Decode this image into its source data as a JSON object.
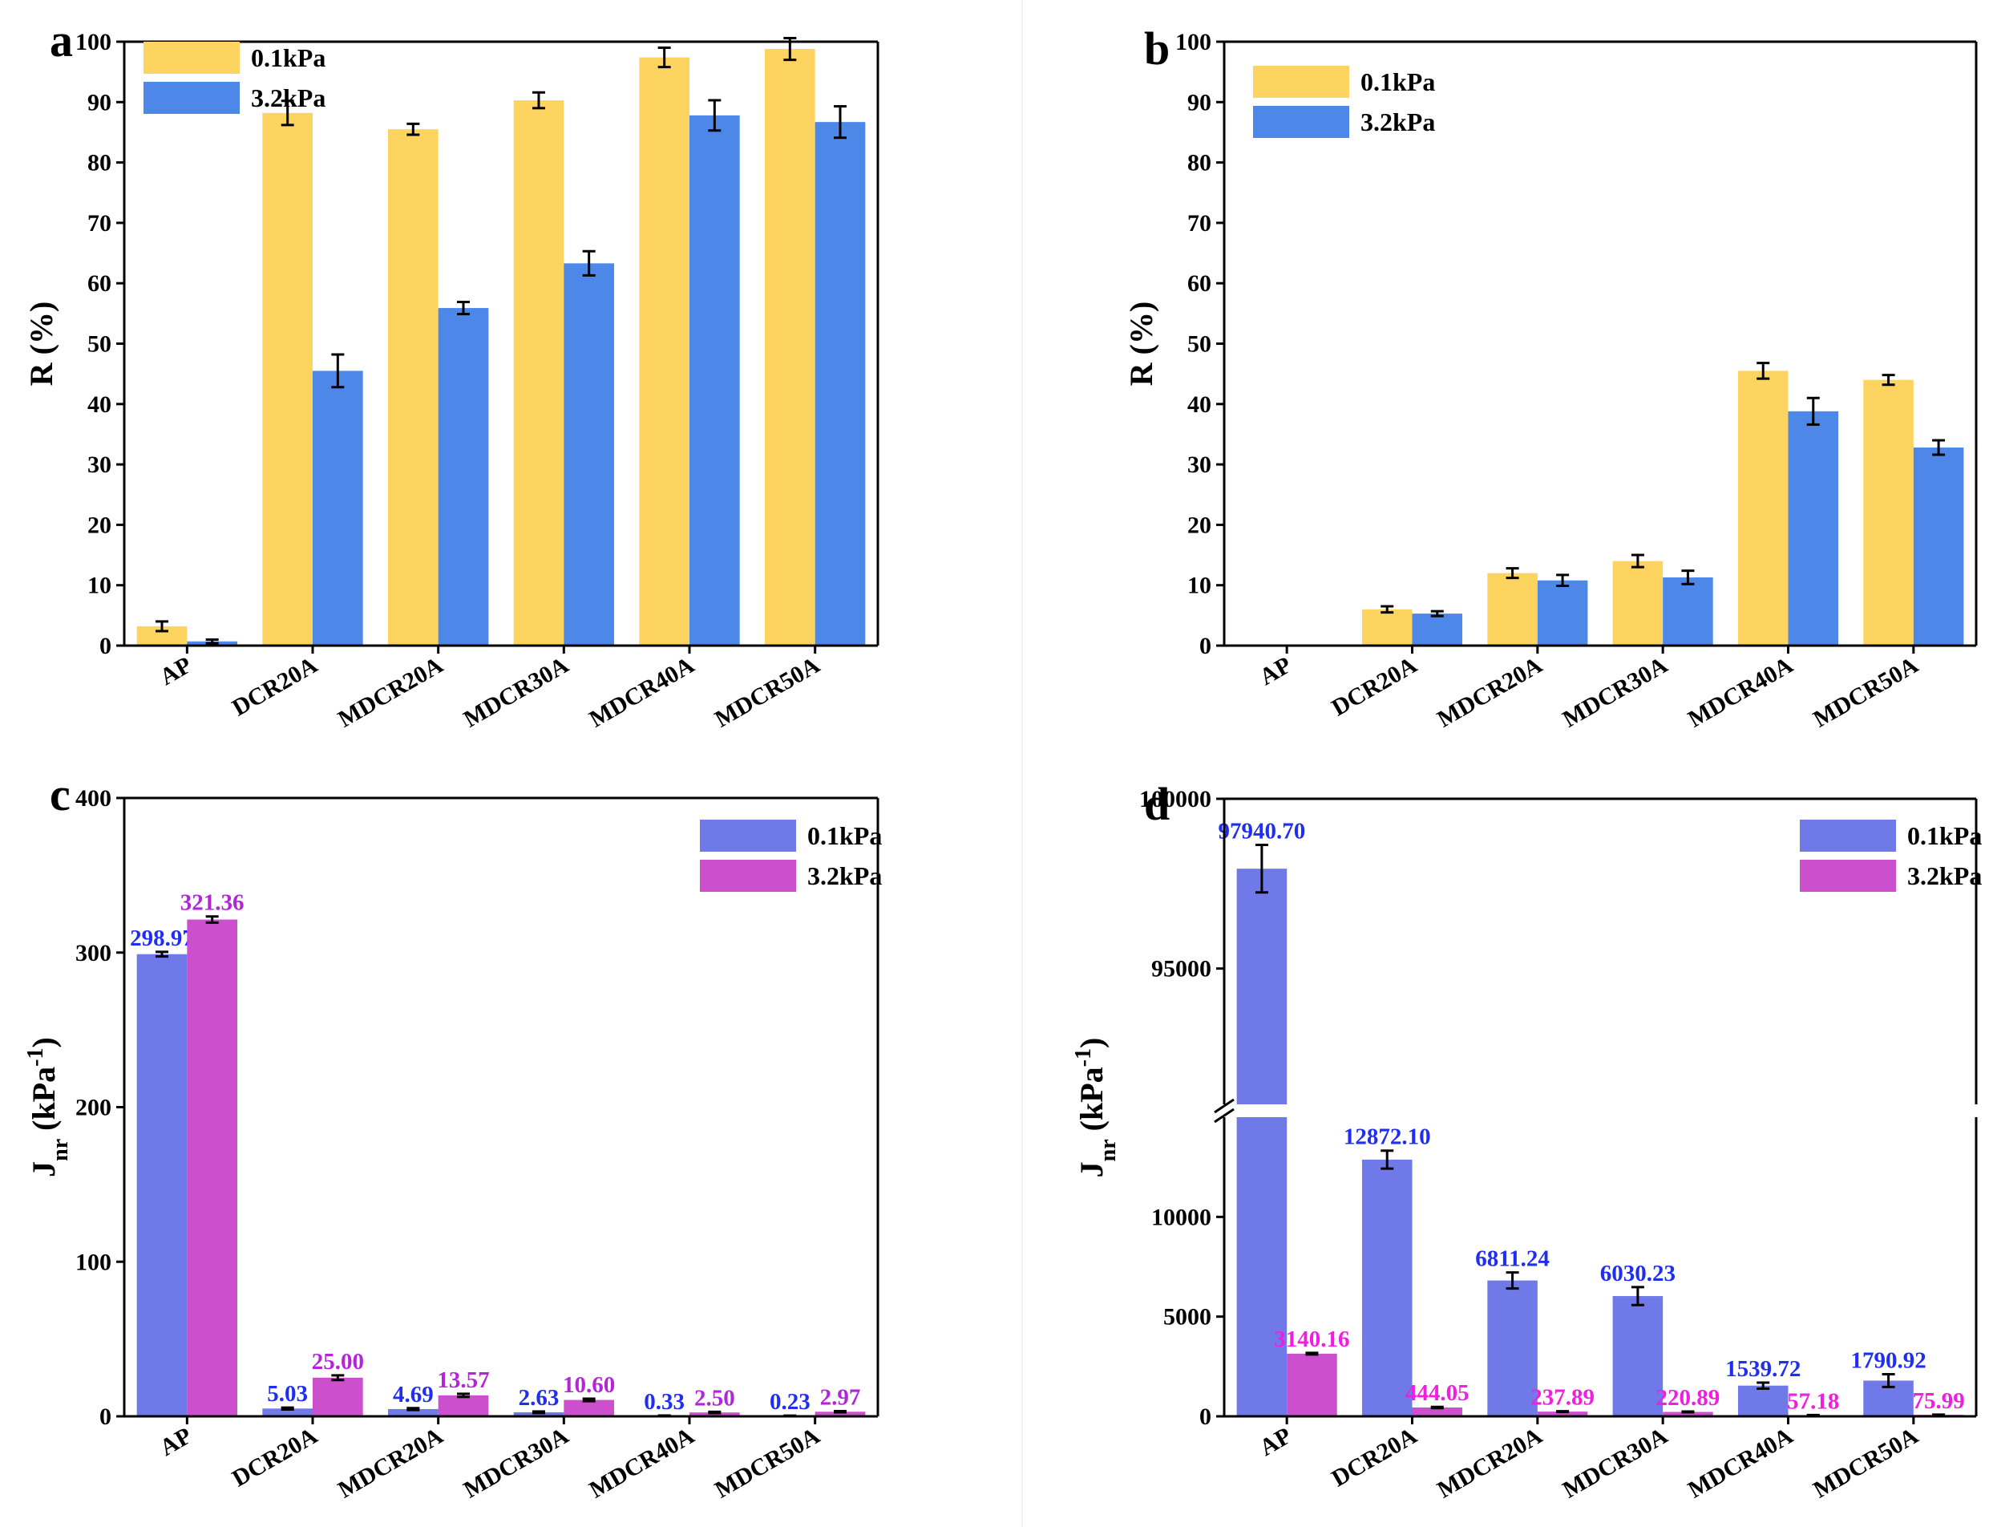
{
  "chart_data": [
    {
      "panel": "a",
      "type": "bar",
      "categories": [
        "AP",
        "DCR20A",
        "MDCR20A",
        "MDCR30A",
        "MDCR40A",
        "MDCR50A"
      ],
      "series": [
        {
          "name": "0.1kPa",
          "color": "#FDD460",
          "values": [
            3.2,
            88.2,
            85.5,
            90.3,
            97.4,
            98.8
          ],
          "errors": [
            0.8,
            2.0,
            0.9,
            1.3,
            1.6,
            1.8
          ]
        },
        {
          "name": "3.2kPa",
          "color": "#4D88E8",
          "values": [
            0.7,
            45.5,
            55.9,
            63.3,
            87.8,
            86.7
          ],
          "errors": [
            0.3,
            2.7,
            1.0,
            2.0,
            2.5,
            2.6
          ]
        }
      ],
      "ylabel": "R (%)",
      "ylim": [
        0,
        100
      ],
      "yticks": [
        0,
        10,
        20,
        30,
        40,
        50,
        60,
        70,
        80,
        90,
        100
      ],
      "legend": "top-left"
    },
    {
      "panel": "b",
      "type": "bar",
      "categories": [
        "AP",
        "DCR20A",
        "MDCR20A",
        "MDCR30A",
        "MDCR40A",
        "MDCR50A"
      ],
      "series": [
        {
          "name": "0.1kPa",
          "color": "#FDD460",
          "values": [
            0,
            6.0,
            12.0,
            14.0,
            45.5,
            44.0
          ],
          "errors": [
            0,
            0.5,
            0.8,
            1.0,
            1.3,
            0.8
          ]
        },
        {
          "name": "3.2kPa",
          "color": "#4D88E8",
          "values": [
            0,
            5.3,
            10.8,
            11.3,
            38.8,
            32.8
          ],
          "errors": [
            0,
            0.4,
            0.9,
            1.1,
            2.2,
            1.2
          ]
        }
      ],
      "ylabel": "R (%)",
      "ylim": [
        0,
        100
      ],
      "yticks": [
        0,
        10,
        20,
        30,
        40,
        50,
        60,
        70,
        80,
        90,
        100
      ],
      "legend": "top-left"
    },
    {
      "panel": "c",
      "type": "bar",
      "categories": [
        "AP",
        "DCR20A",
        "MDCR20A",
        "MDCR30A",
        "MDCR40A",
        "MDCR50A"
      ],
      "series": [
        {
          "name": "0.1kPa",
          "color": "#7079E8",
          "label_color": "#1F2EF2",
          "values": [
            298.97,
            5.03,
            4.69,
            2.63,
            0.33,
            0.23
          ],
          "labels": [
            "298.97",
            "5.03",
            "4.69",
            "2.63",
            "0.33",
            "0.23"
          ],
          "errors": [
            1.5,
            0.6,
            0.6,
            0.5,
            0.2,
            0.2
          ]
        },
        {
          "name": "3.2kPa",
          "color": "#CC4FCE",
          "label_color": "#B226D8",
          "values": [
            321.36,
            25.0,
            13.57,
            10.6,
            2.5,
            2.97
          ],
          "labels": [
            "321.36",
            "25.00",
            "13.57",
            "10.60",
            "2.50",
            "2.97"
          ],
          "errors": [
            2.0,
            1.5,
            1.0,
            0.8,
            0.4,
            0.4
          ]
        }
      ],
      "ylabel": "J",
      "ylabel_sub": "nr",
      "ylabel_unit": " (kPa",
      "ylabel_sup": "-1",
      "ylabel_close": ")",
      "ylim": [
        0,
        400
      ],
      "yticks": [
        0,
        100,
        200,
        300,
        400
      ],
      "legend": "top-right"
    },
    {
      "panel": "d",
      "type": "bar",
      "categories": [
        "AP",
        "DCR20A",
        "MDCR20A",
        "MDCR30A",
        "MDCR40A",
        "MDCR50A"
      ],
      "series": [
        {
          "name": "0.1kPa",
          "color": "#7079E8",
          "label_color": "#1F2EF2",
          "values": [
            97940.7,
            12872.1,
            6811.24,
            6030.23,
            1539.72,
            1790.92
          ],
          "labels": [
            "97940.70",
            "12872.10",
            "6811.24",
            "6030.23",
            "1539.72",
            "1790.92"
          ],
          "errors": [
            700,
            450,
            400,
            450,
            150,
            320
          ]
        },
        {
          "name": "3.2kPa",
          "color": "#CC4FCE",
          "label_color": "#F01FE0",
          "values": [
            3140.16,
            444.05,
            237.89,
            220.89,
            57.18,
            75.99
          ],
          "labels": [
            "3140.16",
            "444.05",
            "237.89",
            "220.89",
            "57.18",
            "75.99"
          ],
          "errors": [
            40,
            30,
            20,
            20,
            10,
            10
          ]
        }
      ],
      "ylabel": "J",
      "ylabel_sub": "nr",
      "ylabel_unit": " (kPa",
      "ylabel_sup": "-1",
      "ylabel_close": ")",
      "ylim": [
        0,
        100000
      ],
      "axis_break": {
        "lower_max": 15000,
        "upper_min": 91000
      },
      "yticks": [
        0,
        5000,
        10000,
        95000,
        100000
      ],
      "legend": "top-right"
    }
  ]
}
